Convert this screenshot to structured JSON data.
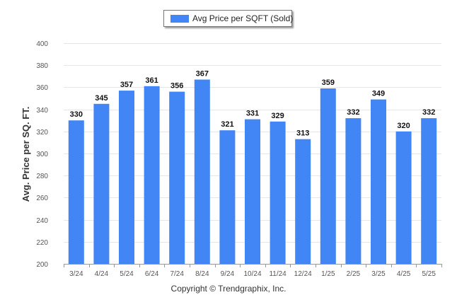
{
  "legend": {
    "label": "Avg Price per SQFT (Sold)"
  },
  "footer": {
    "copyright": "Copyright © Trendgraphix, Inc."
  },
  "colors": {
    "bar": "#4285f4",
    "grid": "#e6e6e6",
    "axis": "#999999"
  },
  "chart_data": {
    "type": "bar",
    "title": "",
    "xlabel": "",
    "ylabel": "Avg. Price per SQ. FT.",
    "categories": [
      "3/24",
      "4/24",
      "5/24",
      "6/24",
      "7/24",
      "8/24",
      "9/24",
      "10/24",
      "11/24",
      "12/24",
      "1/25",
      "2/25",
      "3/25",
      "4/25",
      "5/25"
    ],
    "series": [
      {
        "name": "Avg Price per SQFT (Sold)",
        "values": [
          330,
          345,
          357,
          361,
          356,
          367,
          321,
          331,
          329,
          313,
          359,
          332,
          349,
          320,
          332
        ]
      }
    ],
    "ylim": [
      200,
      400
    ],
    "yticks": [
      200,
      220,
      240,
      260,
      280,
      300,
      320,
      340,
      360,
      380,
      400
    ],
    "grid": true,
    "legend_position": "top-center"
  }
}
